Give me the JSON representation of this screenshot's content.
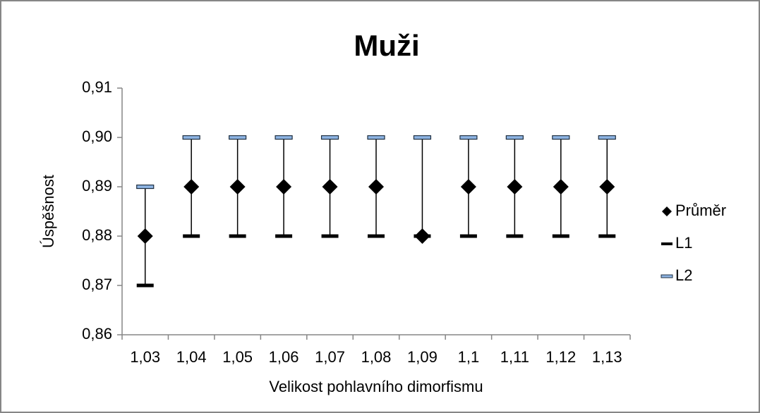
{
  "chart_data": {
    "type": "hilo",
    "title": "Muži",
    "x_label": "Velikost pohlavního dimorfismu",
    "y_label": "Úspěšnost",
    "categories": [
      "1,03",
      "1,04",
      "1,05",
      "1,06",
      "1,07",
      "1,08",
      "1,09",
      "1,1",
      "1,11",
      "1,12",
      "1,13"
    ],
    "series": [
      {
        "name": "Průměr",
        "color": "#000000",
        "role": "mean",
        "values": [
          0.88,
          0.89,
          0.89,
          0.89,
          0.89,
          0.89,
          0.88,
          0.89,
          0.89,
          0.89,
          0.89
        ]
      },
      {
        "name": "L1",
        "color": "#000000",
        "role": "low",
        "values": [
          0.87,
          0.88,
          0.88,
          0.88,
          0.88,
          0.88,
          0.88,
          0.88,
          0.88,
          0.88,
          0.88
        ]
      },
      {
        "name": "L2",
        "color": "#8eb4e3",
        "role": "high",
        "values": [
          0.89,
          0.9,
          0.9,
          0.9,
          0.9,
          0.9,
          0.9,
          0.9,
          0.9,
          0.9,
          0.9
        ]
      }
    ],
    "ylim": [
      0.86,
      0.91
    ],
    "yticks": [
      {
        "value": 0.86,
        "label": "0,86"
      },
      {
        "value": 0.87,
        "label": "0,87"
      },
      {
        "value": 0.88,
        "label": "0,88"
      },
      {
        "value": 0.89,
        "label": "0,89"
      },
      {
        "value": 0.9,
        "label": "0,90"
      },
      {
        "value": 0.91,
        "label": "0,91"
      }
    ],
    "legend": "right",
    "grid": false
  }
}
